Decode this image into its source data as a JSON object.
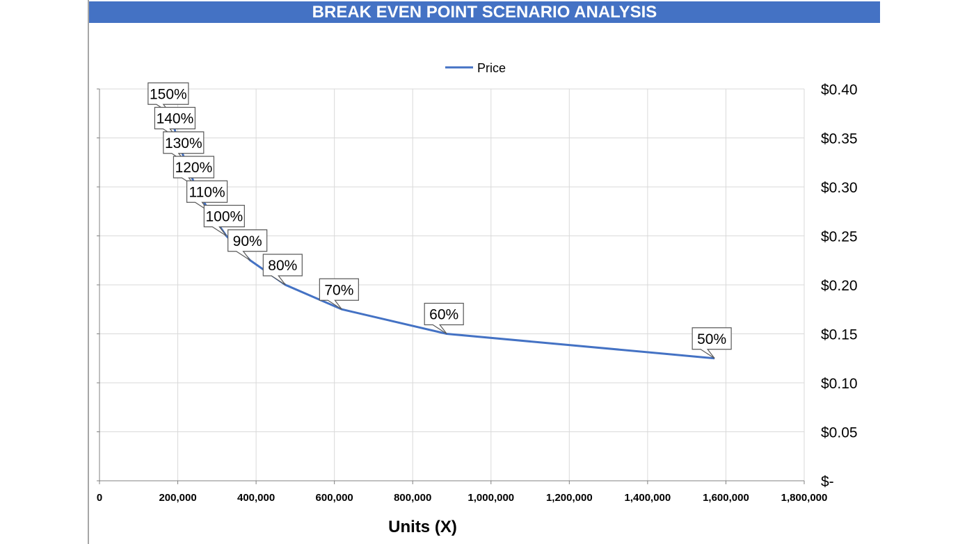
{
  "chart_data": {
    "type": "line",
    "title": "BREAK EVEN POINT SCENARIO ANALYSIS",
    "xlabel": "Units (X)",
    "ylabel": "",
    "xlim": [
      0,
      1800000
    ],
    "ylim": [
      0,
      0.4
    ],
    "x_ticks": [
      "0",
      "200,000",
      "400,000",
      "600,000",
      "800,000",
      "1,000,000",
      "1,200,000",
      "1,400,000",
      "1,600,000",
      "1,800,000"
    ],
    "x_tick_values": [
      0,
      200000,
      400000,
      600000,
      800000,
      1000000,
      1200000,
      1400000,
      1600000,
      1800000
    ],
    "y_ticks": [
      "$-",
      "$0.05",
      "$0.10",
      "$0.15",
      "$0.20",
      "$0.25",
      "$0.30",
      "$0.35",
      "$0.40"
    ],
    "y_tick_values": [
      0,
      0.05,
      0.1,
      0.15,
      0.2,
      0.25,
      0.3,
      0.35,
      0.4
    ],
    "y_axis_position": "right",
    "grid": true,
    "legend_position": "top",
    "series": [
      {
        "name": "Price",
        "color": "#4472C4",
        "points": [
          {
            "x": 181000,
            "y": 0.375,
            "label": "150%"
          },
          {
            "x": 198000,
            "y": 0.35,
            "label": "140%"
          },
          {
            "x": 220000,
            "y": 0.325,
            "label": "130%"
          },
          {
            "x": 246000,
            "y": 0.3,
            "label": "120%"
          },
          {
            "x": 280000,
            "y": 0.275,
            "label": "110%"
          },
          {
            "x": 324000,
            "y": 0.25,
            "label": "100%"
          },
          {
            "x": 385000,
            "y": 0.225,
            "label": "90%"
          },
          {
            "x": 475000,
            "y": 0.2,
            "label": "80%"
          },
          {
            "x": 619000,
            "y": 0.175,
            "label": "70%"
          },
          {
            "x": 887000,
            "y": 0.15,
            "label": "60%"
          },
          {
            "x": 1571000,
            "y": 0.125,
            "label": "50%"
          }
        ]
      }
    ]
  }
}
